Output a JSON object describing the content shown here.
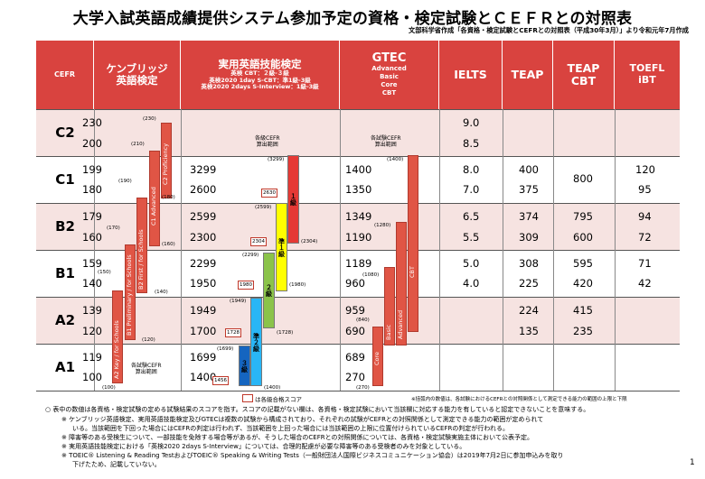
{
  "title": "大学入試英語成績提供システム参加予定の資格・検定試験とＣＥＦＲとの対照表",
  "source": "文部科学省作成「各資格・検定試験とCEFRとの対照表（平成30年3月）」より令和元年7月作成",
  "headers": {
    "cefr": "CEFR",
    "cambridge": "ケンブリッジ\n英語検定",
    "eiken": "実用英語技能検定",
    "eiken_sub1": "英検 CBT：２級-３級",
    "eiken_sub2": "英検2020 1day S-CBT：準1級-3級",
    "eiken_sub3": "英検2020 2days S-Interview：1級-3級",
    "gtec": "GTEC",
    "gtec_sub": "Advanced\nBasic\nCore\nCBT",
    "ielts": "IELTS",
    "teap": "TEAP",
    "teapcbt": "TEAP\nCBT",
    "toefl": "TOEFL\niBT"
  },
  "levels": [
    "C2",
    "C1",
    "B2",
    "B1",
    "A2",
    "A1"
  ],
  "cambridge": {
    "scores": [
      [
        "230",
        "200"
      ],
      [
        "199",
        "180"
      ],
      [
        "179",
        "160"
      ],
      [
        "159",
        "140"
      ],
      [
        "139",
        "120"
      ],
      [
        "119",
        "100"
      ]
    ],
    "marks": [
      "(230)",
      "(210)",
      "(190)",
      "(180)",
      "(170)",
      "(160)",
      "(150)",
      "(140)",
      "(120)",
      "(100)"
    ],
    "exams": [
      "A2 Key / for Schools",
      "B1 Preliminary / for Schools",
      "B2 First / for Schools",
      "C1 Advanced",
      "C2 Proficiency"
    ],
    "note": "各試験CEFR\n算出範囲"
  },
  "eiken": {
    "scores": [
      [
        "",
        ""
      ],
      [
        "3299",
        "2600"
      ],
      [
        "2599",
        "2300"
      ],
      [
        "2299",
        "1950"
      ],
      [
        "1949",
        "1700"
      ],
      [
        "1699",
        "1400"
      ]
    ],
    "marks": [
      "(3299)",
      "(2599)",
      "(2304)",
      "(2299)",
      "(1980)",
      "(1949)",
      "(1728)",
      "(1699)",
      "(1400)"
    ],
    "cutoffs": [
      "2630",
      "2304",
      "1980",
      "1728",
      "1456"
    ],
    "grades": [
      "１級",
      "準１級",
      "２級",
      "準２級",
      "３級"
    ],
    "note": "各級CEFR\n算出範囲"
  },
  "gtec": {
    "scores": [
      [
        "",
        ""
      ],
      [
        "1400",
        "1350"
      ],
      [
        "1349",
        "1190"
      ],
      [
        "1189",
        "960"
      ],
      [
        "959",
        "690"
      ],
      [
        "689",
        "270"
      ]
    ],
    "marks": [
      "(1400)",
      "(1280)",
      "(1080)",
      "(840)",
      "(270)"
    ],
    "exams": [
      "Core",
      "Basic",
      "Advanced",
      "CBT"
    ],
    "note": "各試験CEFR\n算出範囲"
  },
  "ielts": [
    [
      "9.0",
      "8.5"
    ],
    [
      "8.0",
      "7.0"
    ],
    [
      "6.5",
      "5.5"
    ],
    [
      "5.0",
      "4.0"
    ],
    [
      "",
      ""
    ],
    [
      "",
      ""
    ]
  ],
  "teap": [
    [
      "",
      ""
    ],
    [
      "400",
      "375"
    ],
    [
      "374",
      "309"
    ],
    [
      "308",
      "225"
    ],
    [
      "224",
      "135"
    ],
    [
      "",
      ""
    ]
  ],
  "teapcbt": [
    [
      "",
      ""
    ],
    [
      "800",
      ""
    ],
    [
      "795",
      "600"
    ],
    [
      "595",
      "420"
    ],
    [
      "415",
      "235"
    ],
    [
      "",
      ""
    ]
  ],
  "toefl": [
    [
      "",
      ""
    ],
    [
      "120",
      "95"
    ],
    [
      "94",
      "72"
    ],
    [
      "71",
      "42"
    ],
    [
      "",
      ""
    ],
    [
      "",
      ""
    ]
  ],
  "legend_cut": "は各級合格スコア",
  "legend_right": "※括弧内の数値は、各試験におけるCEFRとの対照関係として測定できる能力の範囲の上限と下限",
  "notes": [
    "○ 表中の数値は各資格・検定試験の定める試験結果のスコアを指す。スコアの記載がない欄は、各資格・検定試験において当該欄に対応する能力を有していると認定できないことを意味する。",
    "※ ケンブリッジ英語検定、実用英語技能検定及びGTECは複数の試験から構成されており、それぞれの試験がCEFRとの対照関係として測定できる能力の範囲が定められて",
    "いる。当該範囲を下回った場合にはCEFRの判定は行われず、当該範囲を上回った場合には当該範囲の上限に位置付けられているCEFRの判定が行われる。",
    "※ 障害等のある受検生について、一部技能を免除する場合等があるが、そうした場合のCEFRとの対照関係については、各資格・検定試験実施主体において公表予定。",
    "※ 実用英語技能検定における「英検2020 2days S-Interview」については、合理的配慮が必要な障害等のある受検者のみを対象としている。",
    "※ TOEIC® Listening & Reading TestおよびTOEIC® Speaking & Writing Tests（一般財団法人国際ビジネスコミュニケーション協会）は2019年7月2日に参加申込みを取り",
    "下げたため、記載していない。"
  ],
  "page_number": "1",
  "colors": {
    "header": "#d9433f",
    "band": "#f6e3e1",
    "grade1": "#e53935",
    "grade_pre1": "#ffff00",
    "grade2": "#8bc34a",
    "grade_pre2": "#29b6f6",
    "grade3": "#1565c0"
  }
}
